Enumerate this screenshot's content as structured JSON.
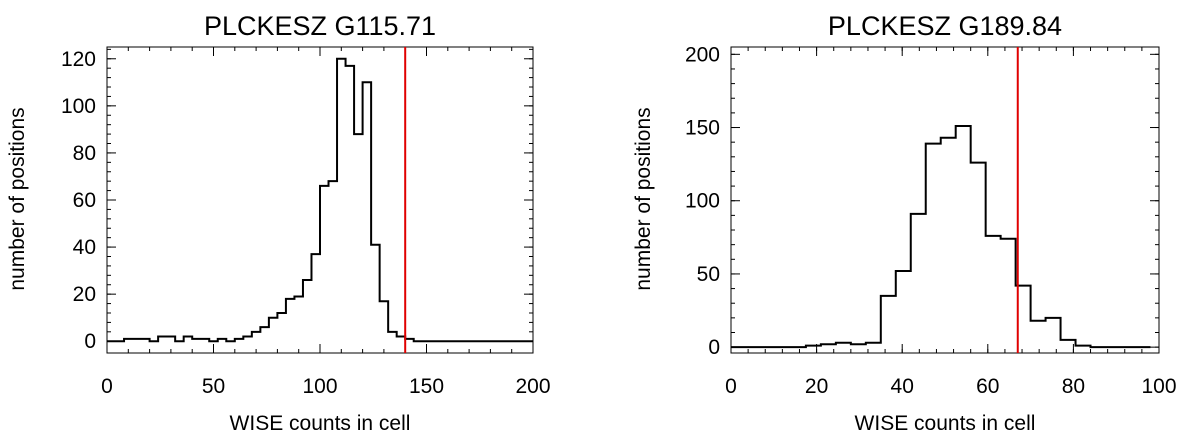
{
  "chart_data": [
    {
      "type": "histogram",
      "title": "PLCKESZ G115.71",
      "xlabel": "WISE counts in cell",
      "ylabel": "number of positions",
      "xlim": [
        0,
        200
      ],
      "ylim": [
        -5,
        125
      ],
      "xticks": [
        0,
        50,
        100,
        150,
        200
      ],
      "yticks": [
        0,
        20,
        40,
        60,
        80,
        100,
        120
      ],
      "bin_width": 4,
      "bin_edges_start": 0,
      "counts": [
        0,
        0,
        1,
        1,
        1,
        0,
        2,
        2,
        0,
        2,
        1,
        1,
        0,
        1,
        0,
        1,
        2,
        4,
        6,
        10,
        12,
        18,
        19,
        26,
        37,
        66,
        68,
        120,
        117,
        88,
        110,
        41,
        17,
        4,
        2,
        1,
        0,
        0,
        0,
        0,
        0,
        0,
        0,
        0,
        0,
        0,
        0,
        0,
        0,
        0
      ],
      "marker": {
        "x": 140,
        "color": "#e00000"
      },
      "grid": false
    },
    {
      "type": "histogram",
      "title": "PLCKESZ G189.84",
      "xlabel": "WISE counts in cell",
      "ylabel": "number of positions",
      "xlim": [
        0,
        100
      ],
      "ylim": [
        -4,
        205
      ],
      "xticks": [
        0,
        20,
        40,
        60,
        80,
        100
      ],
      "yticks": [
        0,
        50,
        100,
        150,
        200
      ],
      "bin_width": 3.5,
      "bin_edges_start": 0,
      "counts": [
        0,
        0,
        0,
        0,
        0,
        1,
        2,
        3,
        2,
        3,
        35,
        52,
        91,
        139,
        143,
        151,
        126,
        76,
        74,
        42,
        18,
        20,
        5,
        1,
        0,
        0,
        0,
        0
      ],
      "marker": {
        "x": 67,
        "color": "#e00000"
      },
      "grid": false
    }
  ]
}
